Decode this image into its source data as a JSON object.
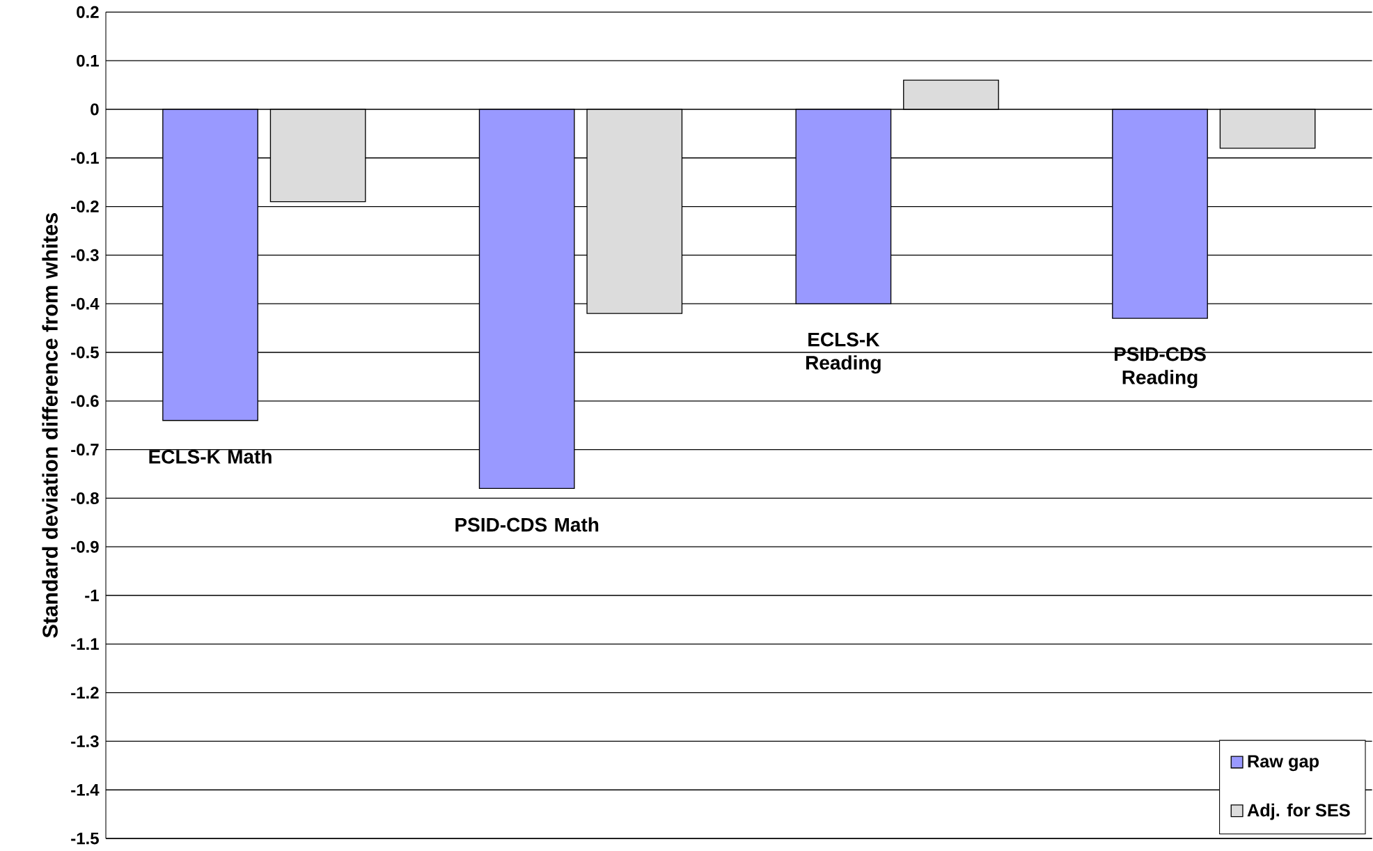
{
  "chart_data": {
    "type": "bar",
    "ylabel": "Standard deviation difference from whites",
    "categories": [
      "ECLS-K Math",
      "PSID-CDS Math",
      "ECLS-K Reading",
      "PSID-CDS Reading"
    ],
    "series": [
      {
        "name": "Raw gap",
        "color": "#9999ff",
        "values": [
          -0.64,
          -0.78,
          -0.4,
          -0.43
        ]
      },
      {
        "name": "Adj. for SES",
        "color": "#dcdcdc",
        "values": [
          -0.19,
          -0.42,
          0.06,
          -0.08
        ]
      }
    ],
    "ylim": [
      -1.5,
      0.2
    ],
    "yticks": [
      -1.5,
      -1.4,
      -1.3,
      -1.2,
      -1.1,
      -1,
      -0.9,
      -0.8,
      -0.7,
      -0.6,
      -0.5,
      -0.4,
      -0.3,
      -0.2,
      -0.1,
      0,
      0.1,
      0.2
    ],
    "grid": "y",
    "legend": "bottom right"
  }
}
